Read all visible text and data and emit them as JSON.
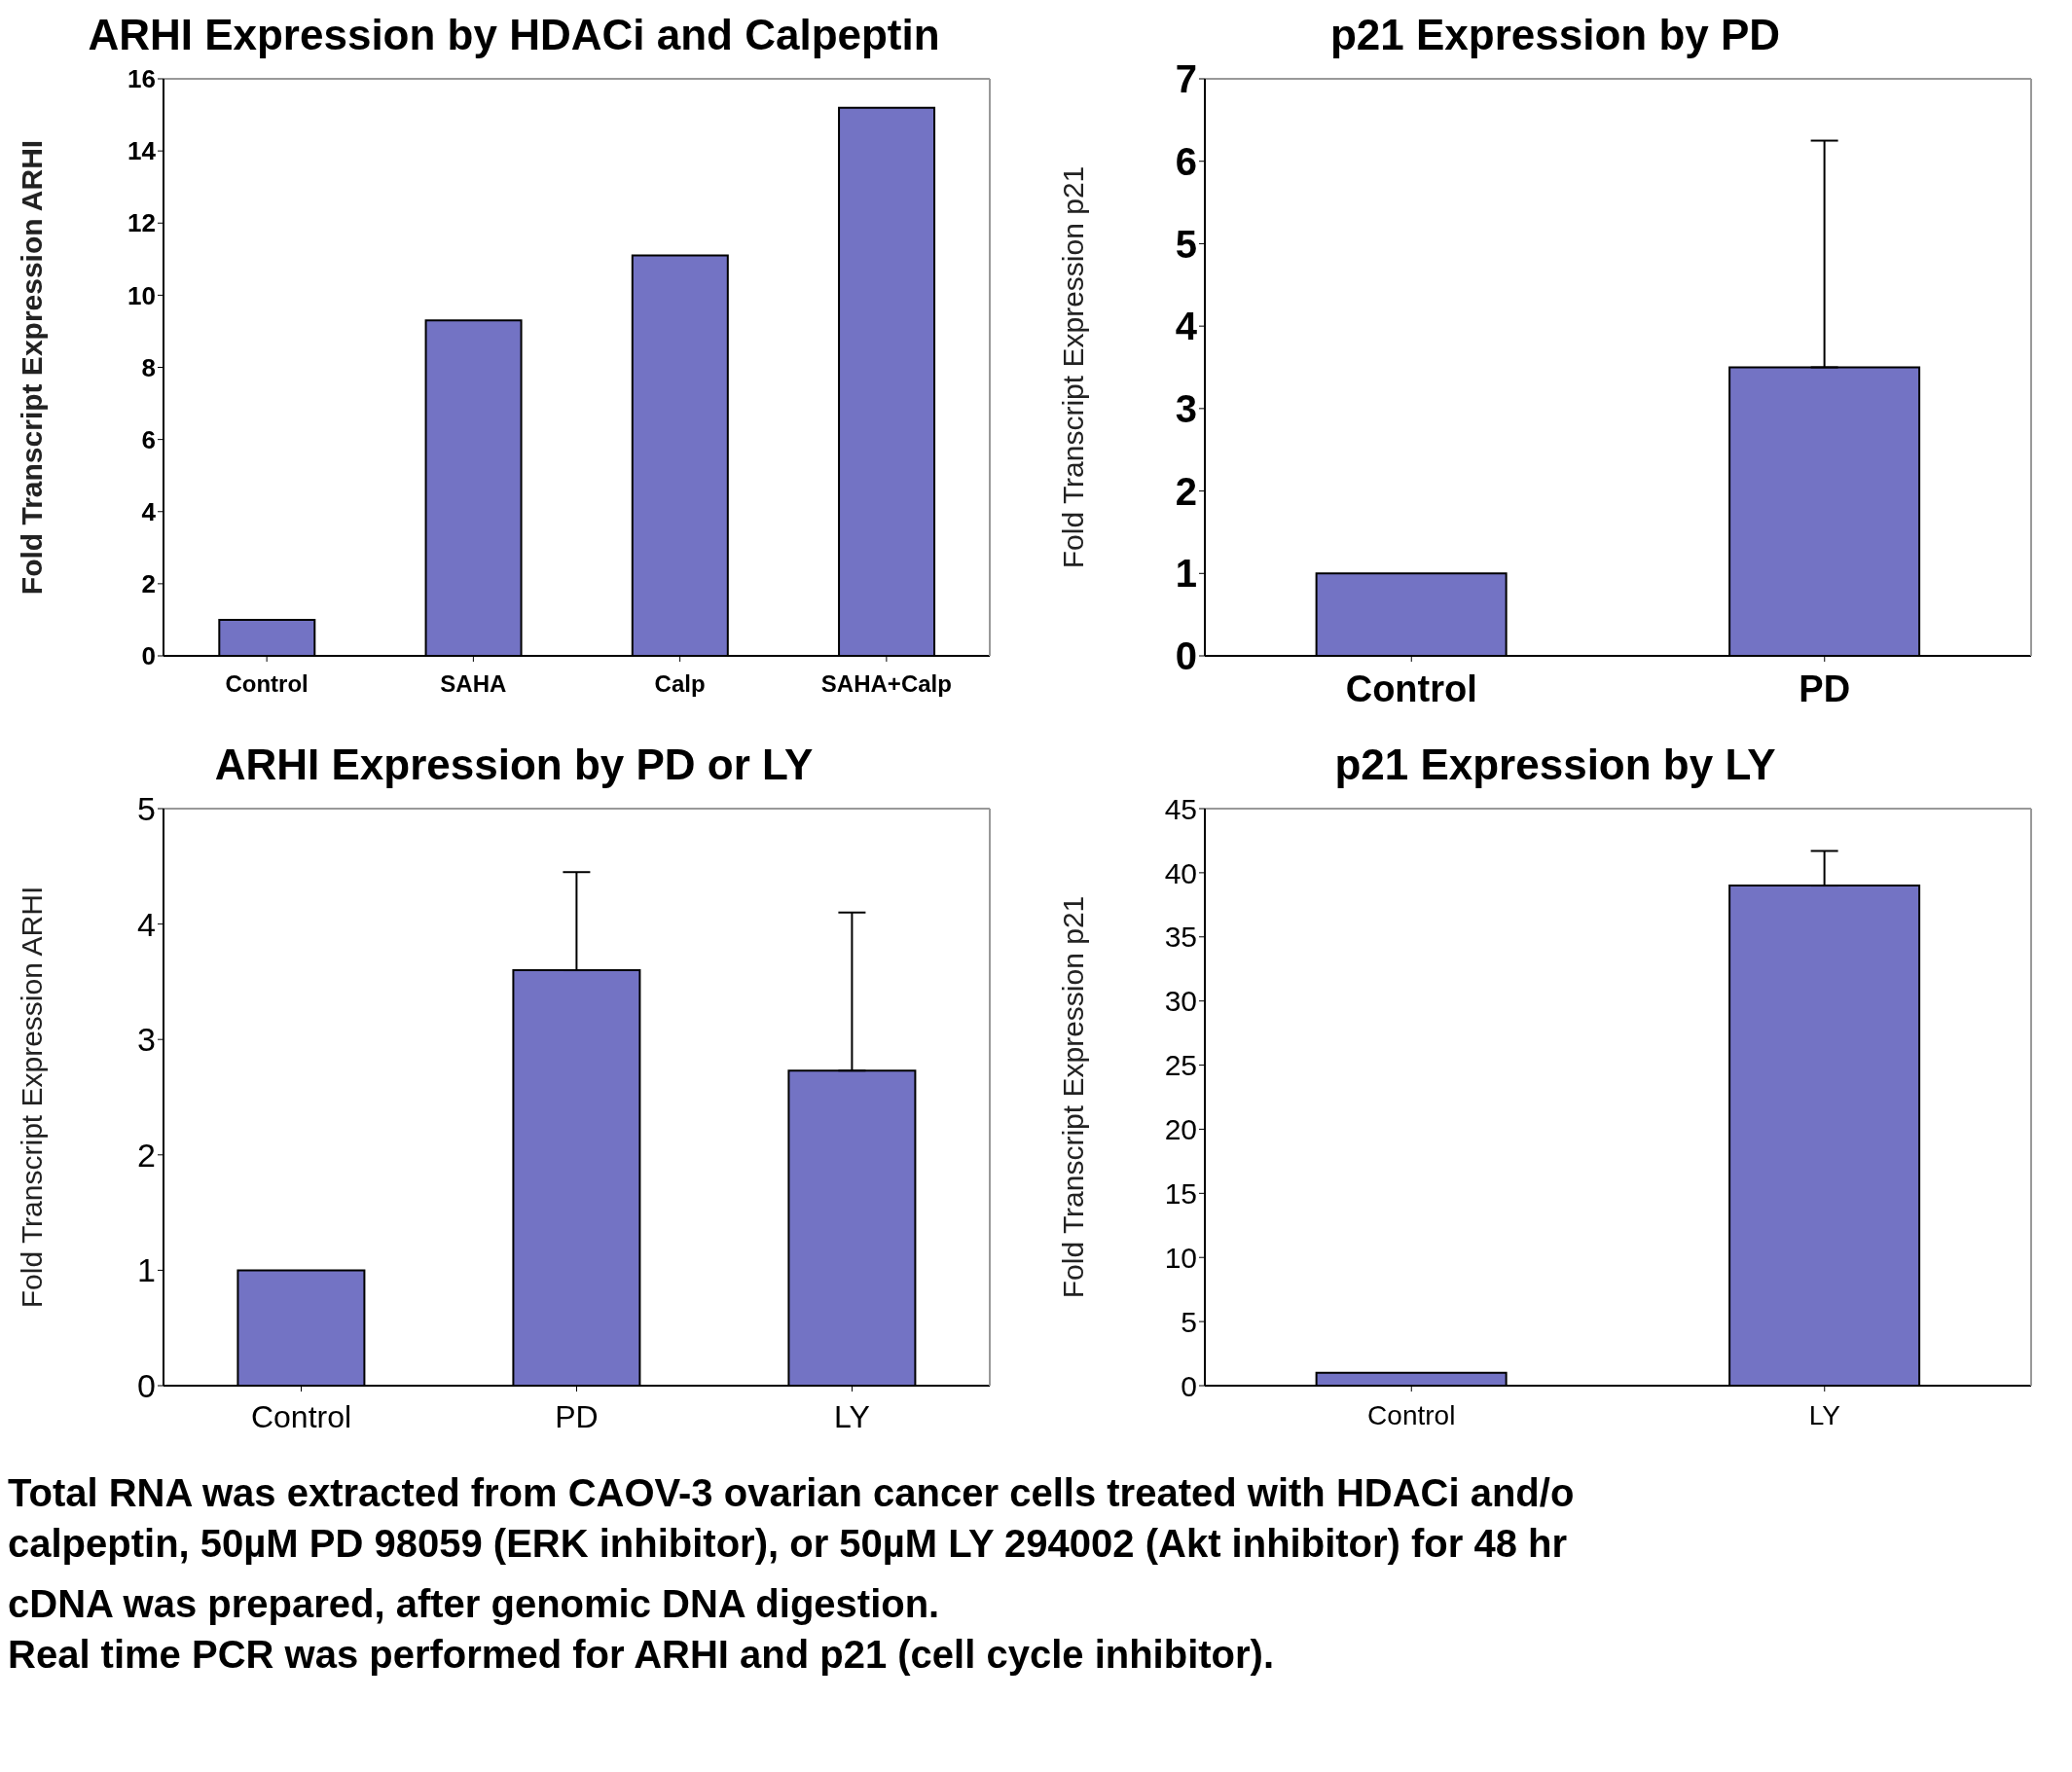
{
  "chart_data": [
    {
      "type": "bar",
      "title": "ARHI Expression by HDACi and Calpeptin",
      "ylabel": "Fold Transcript Expression ARHI",
      "categories": [
        "Control",
        "SAHA",
        "Calp",
        "SAHA+Calp"
      ],
      "values": [
        1.0,
        9.3,
        11.1,
        15.2
      ],
      "color": "#7373c4",
      "ylim": [
        0,
        16
      ],
      "yticks": [
        0,
        2,
        4,
        6,
        8,
        10,
        12,
        14,
        16
      ],
      "legend": false,
      "grid": false
    },
    {
      "type": "bar",
      "title": "p21 Expression by PD",
      "ylabel": "Fold Transcript Expression p21",
      "categories": [
        "Control",
        "PD"
      ],
      "values": [
        1.0,
        3.5
      ],
      "errors": [
        null,
        [
          3.5,
          6.25
        ]
      ],
      "color": "#7373c4",
      "ylim": [
        0,
        7
      ],
      "yticks": [
        0,
        1,
        2,
        3,
        4,
        5,
        6,
        7
      ],
      "legend": false,
      "grid": false
    },
    {
      "type": "bar",
      "title": "ARHI Expression by PD or LY",
      "ylabel": "Fold Transcript Expression ARHI",
      "categories": [
        "Control",
        "PD",
        "LY"
      ],
      "values": [
        1.0,
        3.6,
        2.73
      ],
      "errors": [
        null,
        [
          3.6,
          4.45
        ],
        [
          2.73,
          4.1
        ]
      ],
      "color": "#7373c4",
      "ylim": [
        0,
        5
      ],
      "yticks": [
        0,
        1,
        2,
        3,
        4,
        5
      ],
      "legend": false,
      "grid": false
    },
    {
      "type": "bar",
      "title": "p21 Expression by LY",
      "ylabel": "Fold Transcript Expression p21",
      "categories": [
        "Control",
        "LY"
      ],
      "values": [
        1.0,
        39.0
      ],
      "errors": [
        null,
        [
          39.0,
          41.7
        ]
      ],
      "color": "#7373c4",
      "ylim": [
        0,
        45
      ],
      "yticks": [
        0,
        5,
        10,
        15,
        20,
        25,
        30,
        35,
        40,
        45
      ],
      "legend": false,
      "grid": false,
      "annotations": [
        "Total RNA was extracted from CAOV-3 ovarian cancer cells treated with HDACi and/o",
        "calpeptin, 50µM PD 98059 (ERK inhibitor), or 50µM LY 294002 (Akt inhibitor) for 48 hr",
        "cDNA was prepared, after genomic DNA digestion.",
        "Real time PCR was performed for ARHI and p21 (cell cycle inhibitor)."
      ]
    }
  ]
}
